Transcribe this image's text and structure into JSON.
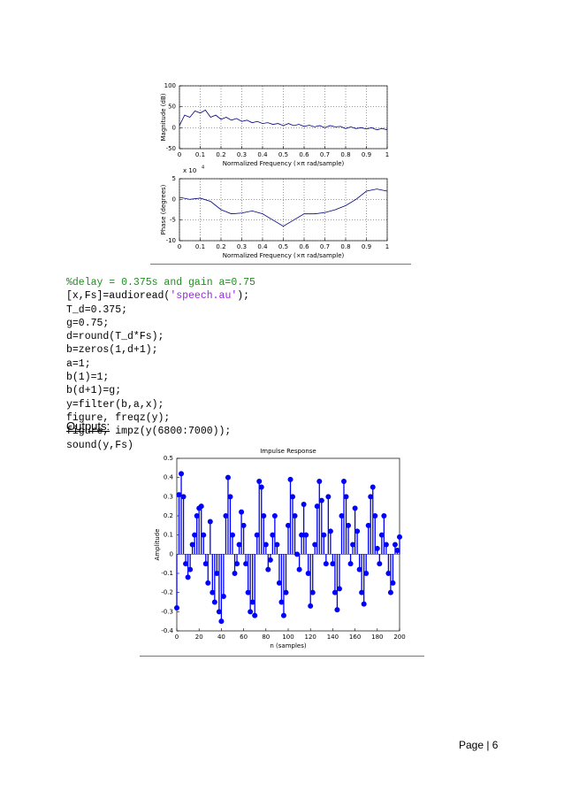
{
  "chart_data": [
    {
      "type": "line",
      "color": "#00007f",
      "grid": true,
      "xlabel": "Normalized Frequency  (×π rad/sample)",
      "ylabel": "Magnitude (dB)",
      "x": [
        0,
        0.025,
        0.05,
        0.075,
        0.1,
        0.125,
        0.15,
        0.175,
        0.2,
        0.225,
        0.25,
        0.275,
        0.3,
        0.325,
        0.35,
        0.375,
        0.4,
        0.425,
        0.45,
        0.475,
        0.5,
        0.525,
        0.55,
        0.575,
        0.6,
        0.625,
        0.65,
        0.675,
        0.7,
        0.725,
        0.75,
        0.775,
        0.8,
        0.825,
        0.85,
        0.875,
        0.9,
        0.925,
        0.95,
        0.975,
        1
      ],
      "values": [
        5,
        30,
        25,
        40,
        35,
        42,
        25,
        30,
        20,
        25,
        18,
        22,
        15,
        18,
        12,
        15,
        10,
        12,
        8,
        10,
        5,
        10,
        5,
        8,
        3,
        6,
        2,
        5,
        0,
        5,
        2,
        3,
        -2,
        2,
        -2,
        0,
        -3,
        0,
        -5,
        -2,
        -5
      ],
      "xlim": [
        0,
        1
      ],
      "xticks": [
        0,
        0.1,
        0.2,
        0.3,
        0.4,
        0.5,
        0.6,
        0.7,
        0.8,
        0.9,
        1
      ],
      "ylim": [
        -50,
        100
      ],
      "yticks": [
        -50,
        0,
        50,
        100
      ]
    },
    {
      "type": "line",
      "color": "#00007f",
      "grid": true,
      "xlabel": "Normalized Frequency  (×π rad/sample)",
      "ylabel": "Phase (degrees)",
      "y_multiplier": "x 10",
      "y_multiplier_exponent": "4",
      "x": [
        0,
        0.05,
        0.1,
        0.15,
        0.2,
        0.25,
        0.3,
        0.35,
        0.4,
        0.45,
        0.5,
        0.55,
        0.6,
        0.65,
        0.7,
        0.75,
        0.8,
        0.85,
        0.9,
        0.95,
        1
      ],
      "values": [
        0.5,
        0,
        0.3,
        -0.5,
        -2.5,
        -3.5,
        -3.3,
        -2.8,
        -3.5,
        -5,
        -6.5,
        -5,
        -3.5,
        -3.5,
        -3.2,
        -2.5,
        -1.5,
        0,
        2,
        2.5,
        2
      ],
      "xlim": [
        0,
        1
      ],
      "xticks": [
        0,
        0.1,
        0.2,
        0.3,
        0.4,
        0.5,
        0.6,
        0.7,
        0.8,
        0.9,
        1
      ],
      "ylim": [
        -10,
        5
      ],
      "yticks": [
        -10,
        -5,
        0,
        5
      ]
    },
    {
      "type": "stem",
      "color": "#0000ff",
      "grid": false,
      "title": "Impulse Response",
      "xlabel": "n (samples)",
      "ylabel": "Amplitude",
      "x": [
        0,
        2,
        4,
        6,
        8,
        10,
        12,
        14,
        16,
        18,
        20,
        22,
        24,
        26,
        28,
        30,
        32,
        34,
        36,
        38,
        40,
        42,
        44,
        46,
        48,
        50,
        52,
        54,
        56,
        58,
        60,
        62,
        64,
        66,
        68,
        70,
        72,
        74,
        76,
        78,
        80,
        82,
        84,
        86,
        88,
        90,
        92,
        94,
        96,
        98,
        100,
        102,
        104,
        106,
        108,
        110,
        112,
        114,
        116,
        118,
        120,
        122,
        124,
        126,
        128,
        130,
        132,
        134,
        136,
        138,
        140,
        142,
        144,
        146,
        148,
        150,
        152,
        154,
        156,
        158,
        160,
        162,
        164,
        166,
        168,
        170,
        172,
        174,
        176,
        178,
        180,
        182,
        184,
        186,
        188,
        190,
        192,
        194,
        196,
        198,
        200
      ],
      "values": [
        -0.28,
        0.31,
        0.42,
        0.3,
        -0.05,
        -0.12,
        -0.08,
        0.05,
        0.1,
        0.2,
        0.24,
        0.25,
        0.1,
        -0.05,
        -0.15,
        0.17,
        -0.2,
        -0.25,
        -0.1,
        -0.3,
        -0.35,
        -0.22,
        0.2,
        0.4,
        0.3,
        0.1,
        -0.1,
        -0.05,
        0.05,
        0.22,
        0.15,
        -0.05,
        -0.2,
        -0.3,
        -0.25,
        -0.32,
        0.1,
        0.38,
        0.35,
        0.2,
        0.05,
        -0.08,
        -0.03,
        0.1,
        0.2,
        0.05,
        -0.15,
        -0.25,
        -0.32,
        -0.2,
        0.15,
        0.39,
        0.3,
        0.2,
        0.0,
        -0.08,
        0.1,
        0.26,
        0.1,
        -0.1,
        -0.27,
        -0.2,
        0.05,
        0.25,
        0.38,
        0.28,
        0.1,
        -0.05,
        0.3,
        0.12,
        -0.05,
        -0.2,
        -0.29,
        -0.18,
        0.2,
        0.38,
        0.3,
        0.15,
        -0.05,
        0.05,
        0.24,
        0.12,
        -0.08,
        -0.2,
        -0.26,
        -0.1,
        0.15,
        0.3,
        0.35,
        0.2,
        0.03,
        -0.05,
        0.1,
        0.2,
        0.05,
        -0.1,
        -0.2,
        -0.15,
        0.05,
        0.02,
        0.09
      ],
      "xlim": [
        0,
        200
      ],
      "xticks": [
        0,
        20,
        40,
        60,
        80,
        100,
        120,
        140,
        160,
        180,
        200
      ],
      "ylim": [
        -0.4,
        0.5
      ],
      "yticks": [
        -0.4,
        -0.3,
        -0.2,
        -0.1,
        0,
        0.1,
        0.2,
        0.3,
        0.4,
        0.5
      ]
    }
  ],
  "code": [
    [
      "%delay = 0.375s and gain a=0.75"
    ],
    [
      "[x,Fs]=audioread(",
      "'speech.au'",
      ");"
    ],
    [
      "T_d=0.375;"
    ],
    [
      "g=0.75;"
    ],
    [
      "d=round(T_d*Fs);"
    ],
    [
      "b=zeros(1,d+1);"
    ],
    [
      "a=1;"
    ],
    [
      "b(1)=1;"
    ],
    [
      "b(d+1)=g;"
    ],
    [
      "y=filter(b,a,x);"
    ],
    [
      "figure, freqz(y);"
    ],
    [
      "figure, impz(y(6800:7000));"
    ],
    [
      "sound(y,Fs)"
    ]
  ],
  "outputs_label": "Outputs:",
  "footer": "Page | 6"
}
